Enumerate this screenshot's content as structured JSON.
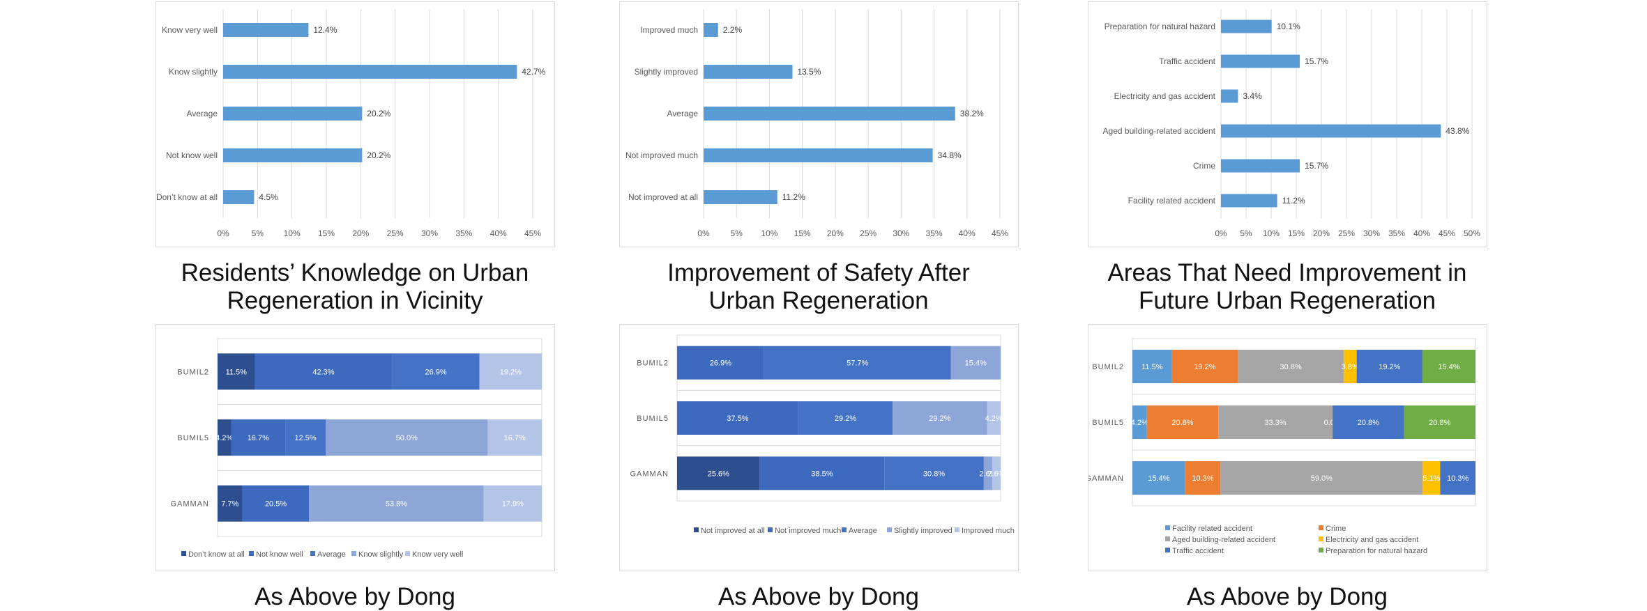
{
  "colors": {
    "single_bar": "#5b9bd5",
    "grid": "#d9d9d9",
    "axis_text": "#595959",
    "label_text": "#404040",
    "knowledge_scale": [
      "#2e4f8f",
      "#3d6abf",
      "#4472c4",
      "#8ea5d8",
      "#b4c4e6"
    ],
    "safety_scale": [
      "#2e4f8f",
      "#3d6abf",
      "#4472c4",
      "#8ea5d8",
      "#b4c4e6"
    ],
    "areas_scale": [
      "#5b9bd5",
      "#ed7d31",
      "#a5a5a5",
      "#ffc000",
      "#4472c4",
      "#70ad47"
    ]
  },
  "captions": {
    "top": [
      "Residents’ Knowledge on Urban Regeneration in Vicinity",
      "Improvement of Safety After Urban Regeneration",
      "Areas That Need Improvement in Future Urban Regeneration"
    ],
    "bottom": [
      "As Above by Dong",
      "As Above by Dong",
      "As Above by Dong"
    ]
  },
  "chart_data": [
    {
      "type": "bar",
      "orientation": "horizontal",
      "title": "Residents’ Knowledge on Urban Regeneration in Vicinity",
      "categories": [
        "Know very well",
        "Know slightly",
        "Average",
        "Not know well",
        "Don’t know at all"
      ],
      "values": [
        12.4,
        42.7,
        20.2,
        20.2,
        4.5
      ],
      "value_labels": [
        "12.4%",
        "42.7%",
        "20.2%",
        "20.2%",
        "4.5%"
      ],
      "xlim": [
        0,
        45
      ],
      "xticks": [
        "0%",
        "5%",
        "10%",
        "15%",
        "20%",
        "25%",
        "30%",
        "35%",
        "40%",
        "45%"
      ],
      "grid": true
    },
    {
      "type": "bar",
      "orientation": "horizontal",
      "title": "Improvement of Safety After Urban Regeneration",
      "categories": [
        "Improved much",
        "Slightly improved",
        "Average",
        "Not improved much",
        "Not improved at all"
      ],
      "values": [
        2.2,
        13.5,
        38.2,
        34.8,
        11.2
      ],
      "value_labels": [
        "2.2%",
        "13.5%",
        "38.2%",
        "34.8%",
        "11.2%"
      ],
      "xlim": [
        0,
        45
      ],
      "xticks": [
        "0%",
        "5%",
        "10%",
        "15%",
        "20%",
        "25%",
        "30%",
        "35%",
        "40%",
        "45%"
      ],
      "grid": true
    },
    {
      "type": "bar",
      "orientation": "horizontal",
      "title": "Areas That Need Improvement in Future Urban Regeneration",
      "categories": [
        "Preparation for natural hazard",
        "Traffic accident",
        "Electricity and gas accident",
        "Aged building-related accident",
        "Crime",
        "Facility related accident"
      ],
      "values": [
        10.1,
        15.7,
        3.4,
        43.8,
        15.7,
        11.2
      ],
      "value_labels": [
        "10.1%",
        "15.7%",
        "3.4%",
        "43.8%",
        "15.7%",
        "11.2%"
      ],
      "xlim": [
        0,
        50
      ],
      "xticks": [
        "0%",
        "5%",
        "10%",
        "15%",
        "20%",
        "25%",
        "30%",
        "35%",
        "40%",
        "45%",
        "50%"
      ],
      "grid": true
    },
    {
      "type": "bar",
      "stacked": "percent",
      "orientation": "horizontal",
      "title": "As Above by Dong",
      "categories": [
        "BUMIL2",
        "BUMIL5",
        "GAMMAN"
      ],
      "series": [
        {
          "name": "Don’t know at all",
          "values": [
            11.5,
            4.2,
            7.7
          ],
          "labels": [
            "11.5%",
            "4.2%",
            "7.7%"
          ]
        },
        {
          "name": "Not know well",
          "values": [
            42.3,
            16.7,
            20.5
          ],
          "labels": [
            "42.3%",
            "16.7%",
            "20.5%"
          ]
        },
        {
          "name": "Average",
          "values": [
            26.9,
            12.5,
            0
          ],
          "labels": [
            "26.9%",
            "12.5%",
            ""
          ]
        },
        {
          "name": "Know slightly",
          "values": [
            0,
            50.0,
            53.8
          ],
          "labels": [
            "",
            "50.0%",
            "53.8%"
          ]
        },
        {
          "name": "Know very well",
          "values": [
            19.2,
            16.7,
            17.9
          ],
          "labels": [
            "19.2%",
            "16.7%",
            "17.9%"
          ]
        }
      ],
      "legend": "bottom"
    },
    {
      "type": "bar",
      "stacked": "percent",
      "orientation": "horizontal",
      "title": "As Above by Dong",
      "categories": [
        "BUMIL2",
        "BUMIL5",
        "GAMMAN"
      ],
      "series": [
        {
          "name": "Not improved at all",
          "values": [
            0,
            0,
            25.6
          ],
          "labels": [
            "",
            "",
            "25.6%"
          ]
        },
        {
          "name": "Not improved much",
          "values": [
            26.9,
            37.5,
            38.5
          ],
          "labels": [
            "26.9%",
            "37.5%",
            "38.5%"
          ]
        },
        {
          "name": "Average",
          "values": [
            57.7,
            29.2,
            30.8
          ],
          "labels": [
            "57.7%",
            "29.2%",
            "30.8%"
          ]
        },
        {
          "name": "Slightly improved",
          "values": [
            15.4,
            29.2,
            2.6
          ],
          "labels": [
            "15.4%",
            "29.2%",
            "2.6%"
          ]
        },
        {
          "name": "Improved much",
          "values": [
            0,
            4.2,
            2.6
          ],
          "labels": [
            "",
            "4.2%",
            "2.6%"
          ]
        }
      ],
      "legend": "bottom"
    },
    {
      "type": "bar",
      "stacked": "percent",
      "orientation": "horizontal",
      "title": "As Above by Dong",
      "categories": [
        "BUMIL2",
        "BUMIL5",
        "GAMMAN"
      ],
      "series": [
        {
          "name": "Facility related accident",
          "values": [
            11.5,
            4.2,
            15.4
          ],
          "labels": [
            "11.5%",
            "4.2%",
            "15.4%"
          ]
        },
        {
          "name": "Crime",
          "values": [
            19.2,
            20.8,
            10.3
          ],
          "labels": [
            "19.2%",
            "20.8%",
            "10.3%"
          ]
        },
        {
          "name": "Aged building-related accident",
          "values": [
            30.8,
            33.3,
            59.0
          ],
          "labels": [
            "30.8%",
            "33.3%",
            "59.0%"
          ]
        },
        {
          "name": "Electricity and gas accident",
          "values": [
            3.8,
            0.0,
            5.1
          ],
          "labels": [
            "3.8%",
            "0.0%",
            "5.1%"
          ]
        },
        {
          "name": "Traffic accident",
          "values": [
            19.2,
            20.8,
            10.3
          ],
          "labels": [
            "19.2%",
            "20.8%",
            "10.3%"
          ]
        },
        {
          "name": "Preparation for natural hazard",
          "values": [
            15.4,
            20.8,
            0
          ],
          "labels": [
            "15.4%",
            "20.8%",
            ""
          ]
        }
      ],
      "legend": "bottom"
    }
  ]
}
